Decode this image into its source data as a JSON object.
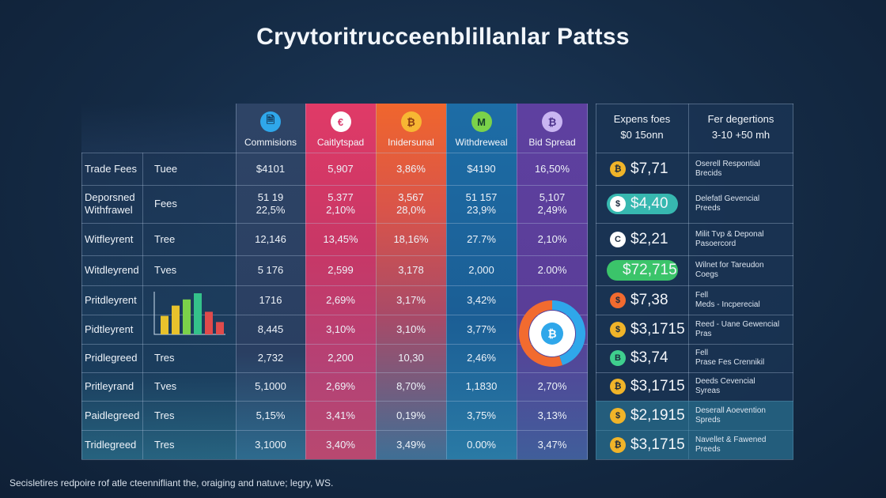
{
  "title": "Cryvtoritrucceenblillanlar Pattss",
  "footer": "Secisletires redpoire rof atle cteennifliant the, oraiging and natuve; legry, WS.",
  "colors": {
    "commissions": "#2c3e5e",
    "cashpad": "#d9366b",
    "underground": "#e8612f",
    "withdrawal": "#1c66a3",
    "bid_spread": "#5a3d9a",
    "right_bg": "#1a3454"
  },
  "chart_data": {
    "type": "table",
    "title": "Cryvtoritrucceenblillanlar Pattss",
    "columns": [
      {
        "label": "Commisions",
        "icon": "document-icon",
        "icon_char": "🗎"
      },
      {
        "label": "Caitlytspad",
        "icon": "euro-icon",
        "icon_char": "€"
      },
      {
        "label": "Inidersunal",
        "icon": "shield-icon",
        "icon_char": "₿"
      },
      {
        "label": "Withdreweal",
        "icon": "monero-icon",
        "icon_char": "M"
      },
      {
        "label": "Bid Spread",
        "icon": "bitcoin-icon",
        "icon_char": "₿"
      }
    ],
    "rows": [
      {
        "label": "Trade Fees",
        "type": "Tuee",
        "values": [
          "$4101",
          "5,907",
          "3,86%",
          "$4190",
          "16,50%"
        ]
      },
      {
        "label": "Deporsned\nWithfrawel",
        "type": "Fees",
        "values": [
          "51 19\n22,5%",
          "5.377\n2,10%",
          "3,567\n28,0%",
          "51 157\n23,9%",
          "5,107\n2,49%"
        ]
      },
      {
        "label": "Witfleyrent",
        "type": "Tree",
        "values": [
          "12,146",
          "13,45%",
          "18,16%",
          "27.7%",
          "2,10%"
        ]
      },
      {
        "label": "Witdleyrend",
        "type": "Tves",
        "values": [
          "5 176",
          "2,599",
          "3,178",
          "2,000",
          "2.00%"
        ]
      },
      {
        "label": "Pritdleyrent",
        "type": "",
        "values": [
          "1716",
          "2,69%",
          "3,17%",
          "3,42%",
          ""
        ]
      },
      {
        "label": "Pidtleyrent",
        "type": "",
        "values": [
          "8,445",
          "3,10%",
          "3,10%",
          "3,77%",
          ""
        ]
      },
      {
        "label": "Pridlegreed",
        "type": "Tres",
        "values": [
          "2,732",
          "2,200",
          "10,30",
          "2,46%",
          ""
        ]
      },
      {
        "label": "Pritleyrand",
        "type": "Tves",
        "values": [
          "5,1000",
          "2,69%",
          "8,70%",
          "1,1830",
          "2,70%"
        ]
      },
      {
        "label": "Paidlegreed",
        "type": "Tres",
        "values": [
          "5,15%",
          "3,41%",
          "0,19%",
          "3,75%",
          "3,13%"
        ]
      },
      {
        "label": "Tridlegreed",
        "type": "Tres",
        "values": [
          "3,1000",
          "3,40%",
          "3,49%",
          "0.00%",
          "3,47%"
        ]
      }
    ],
    "mini_bar": {
      "values": [
        0.45,
        0.7,
        0.85,
        1.0,
        0.55,
        0.3
      ],
      "colors": [
        "#e8c22c",
        "#e8c22c",
        "#7bd24a",
        "#34c28a",
        "#e04b4b",
        "#e04b4b"
      ]
    },
    "donut": {
      "segments": [
        {
          "value": 0.45,
          "color": "#2fa7ea"
        },
        {
          "value": 0.55,
          "color": "#f26b2f"
        }
      ],
      "center": "₿"
    }
  },
  "right_table": {
    "headers": [
      {
        "line1": "Expens foes",
        "line2": "$0 15onn"
      },
      {
        "line1": "Fer degertions",
        "line2": "3-10 +50 mh"
      }
    ],
    "rows": [
      {
        "coin": "₿",
        "coin_color": "#f0b429",
        "value": "$7,71",
        "note": "Oserell Respontial\nBrecids",
        "pill": ""
      },
      {
        "coin": "$",
        "coin_color": "#ffffff",
        "value": "$4,40",
        "note": "Delefatl Gevencial\nPreeds",
        "pill": "#37b8b0"
      },
      {
        "coin": "C",
        "coin_color": "#ffffff",
        "value": "$2,21",
        "note": "Milit Tvp & Deponal\nPasoercord",
        "pill": ""
      },
      {
        "coin": "",
        "coin_color": "",
        "value": "$72,715",
        "note": "Wilnet for Tareudon\nCoegs",
        "pill": "#3bc46a"
      },
      {
        "coin": "$",
        "coin_color": "#f26b2f",
        "value": "$7,38",
        "note": "Fell\nMeds - Incperecial",
        "pill": ""
      },
      {
        "coin": "$",
        "coin_color": "#f0b429",
        "value": "$3,1715",
        "note": "Reed - Uane Gewencial\nPras",
        "pill": ""
      },
      {
        "coin": "B",
        "coin_color": "#3fcf8e",
        "value": "$3,74",
        "note": "Fell\nPrase  Fes Crennikil",
        "pill": ""
      },
      {
        "coin": "₿",
        "coin_color": "#f0b429",
        "value": "$3,1715",
        "note": "Deeds Cevencial\nSyreas",
        "pill": ""
      },
      {
        "coin": "$",
        "coin_color": "#f0b429",
        "value": "$2,1915",
        "note": "Deserall Aoevention\nSpreds",
        "pill": ""
      },
      {
        "coin": "₿",
        "coin_color": "#f0b429",
        "value": "$3,1715",
        "note": "Navellet & Fawened\nPreeds",
        "pill": ""
      }
    ]
  }
}
